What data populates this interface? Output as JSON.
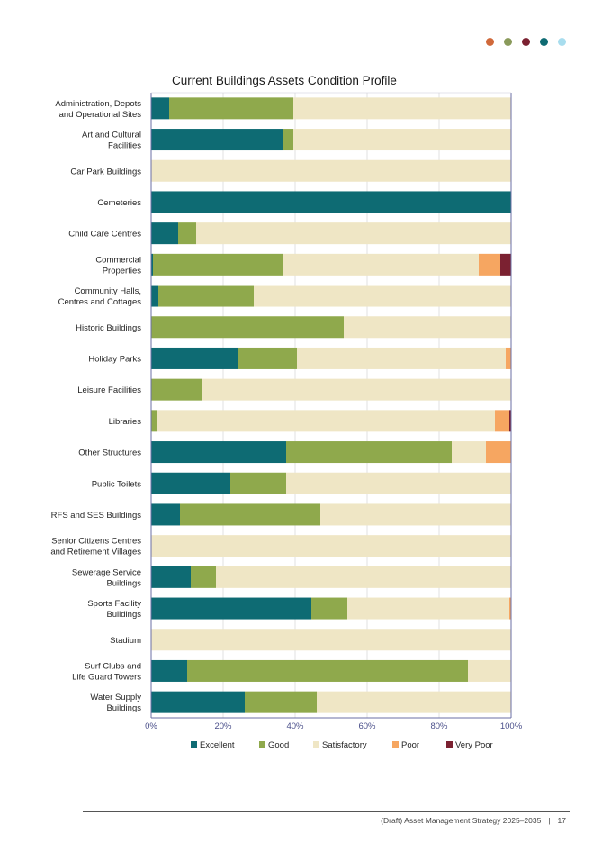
{
  "decoration": {
    "dots": [
      {
        "name": "orange-dot",
        "color": "#D0693A"
      },
      {
        "name": "green-dot",
        "color": "#8A9A5B"
      },
      {
        "name": "maroon-dot",
        "color": "#7B2131"
      },
      {
        "name": "teal-dot",
        "color": "#0E6B73"
      },
      {
        "name": "light-blue-dot",
        "color": "#A8DDEE"
      }
    ]
  },
  "chart_data": {
    "type": "bar",
    "orientation": "horizontal",
    "stacked": true,
    "title": "Current Buildings Assets Condition Profile",
    "xlabel": "",
    "ylabel": "",
    "xlim": [
      0,
      100
    ],
    "x_ticks": [
      "0%",
      "20%",
      "40%",
      "60%",
      "80%",
      "100%"
    ],
    "grid": true,
    "legend_position": "bottom",
    "categories": [
      "Administration, Depots\nand Operational Sites",
      "Art and Cultural\nFacilities",
      "Car Park Buildings",
      "Cemeteries",
      "Child Care Centres",
      "Commercial\nProperties",
      "Community Halls,\nCentres and Cottages",
      "Historic Buildings",
      "Holiday Parks",
      "Leisure Facilities",
      "Libraries",
      "Other Structures",
      "Public Toilets",
      "RFS and SES Buildings",
      "Senior Citizens Centres\nand Retirement Villages",
      "Sewerage Service\nBuildings",
      "Sports Facility\nBuildings",
      "Stadium",
      "Surf Clubs and\nLife Guard Towers",
      "Water Supply\nBuildings"
    ],
    "series": [
      {
        "name": "Excellent",
        "color": "#0E6B73",
        "values": [
          5,
          36.5,
          0,
          100,
          7.5,
          0.5,
          2,
          0,
          24,
          0,
          0,
          37.5,
          22,
          8,
          0,
          11,
          44.5,
          0,
          10,
          26
        ]
      },
      {
        "name": "Good",
        "color": "#8FA94C",
        "values": [
          34.5,
          3,
          0,
          0,
          5,
          36,
          26.5,
          53.5,
          16.5,
          14,
          1.5,
          46,
          15.5,
          39,
          0,
          7,
          10,
          0,
          78,
          20
        ]
      },
      {
        "name": "Satisfactory",
        "color": "#EFE6C5",
        "values": [
          60.5,
          60.5,
          100,
          0,
          87.5,
          54.5,
          71.5,
          46.5,
          58,
          86,
          94,
          9.5,
          62.5,
          53,
          100,
          82,
          45,
          100,
          12,
          54
        ]
      },
      {
        "name": "Poor",
        "color": "#F6A661",
        "values": [
          0,
          0,
          0,
          0,
          0,
          6,
          0,
          0,
          1.5,
          0,
          4,
          7,
          0,
          0,
          0,
          0,
          0.5,
          0,
          0,
          0
        ]
      },
      {
        "name": "Very Poor",
        "color": "#7B2131",
        "values": [
          0,
          0,
          0,
          0,
          0,
          3,
          0,
          0,
          0,
          0,
          0.5,
          0,
          0,
          0,
          0,
          0,
          0,
          0,
          0,
          0
        ]
      }
    ]
  },
  "footer": {
    "document_title": "(Draft) Asset Management Strategy 2025–2035",
    "separator": "|",
    "page_number": "17"
  }
}
